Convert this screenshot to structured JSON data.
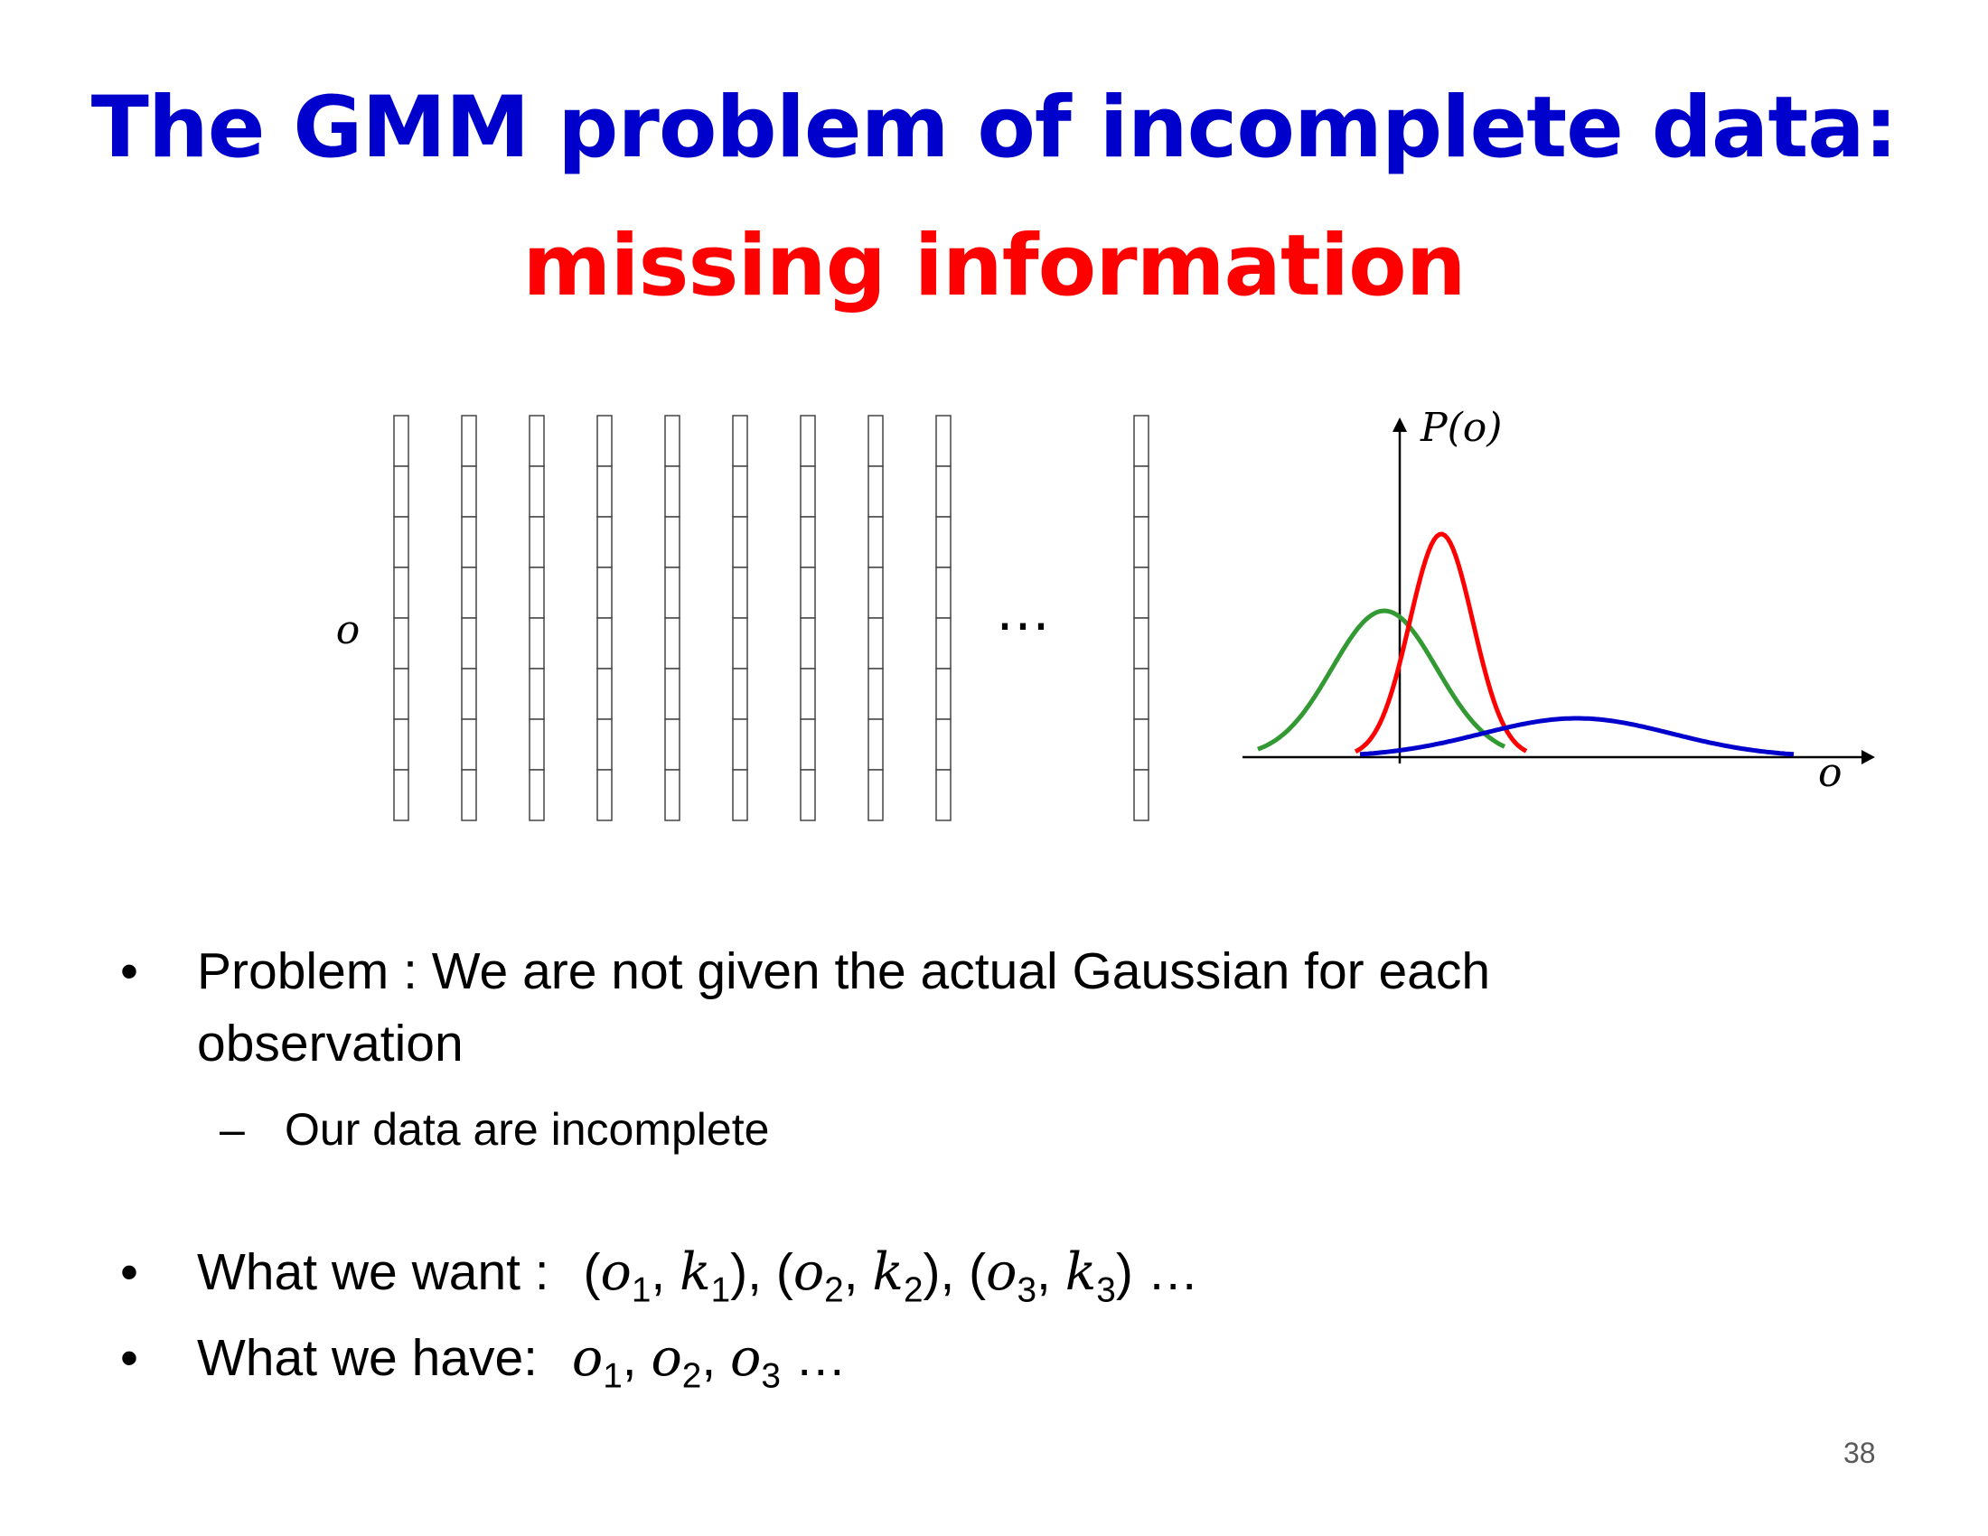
{
  "slide": {
    "title_line1": "The GMM problem of incomplete data:",
    "title_line2": "missing information",
    "page_number": "38"
  },
  "figure": {
    "column_label": "o",
    "column_count": 10,
    "cells_per_column": 8,
    "ellipsis": "⋯",
    "axis_y_label": "P(o)",
    "axis_x_label": "o",
    "curve_colors": {
      "green": "#339933",
      "red": "#ff0000",
      "blue": "#0000cc"
    }
  },
  "bullets": {
    "problem_text": "Problem : We are not given the actual Gaussian for each",
    "problem_text_cont": "observation",
    "sub_marker": "–",
    "sub_text": "Our data are incomplete",
    "want_text": "What we want :",
    "have_text": "What we have:",
    "marker": "•",
    "want_math": [
      {
        "o": "o",
        "os": "1",
        "k": "k",
        "ks": "1"
      },
      {
        "o": "o",
        "os": "2",
        "k": "k",
        "ks": "2"
      },
      {
        "o": "o",
        "os": "3",
        "k": "k",
        "ks": "3"
      }
    ],
    "have_math": [
      {
        "o": "o",
        "os": "1"
      },
      {
        "o": "o",
        "os": "2"
      },
      {
        "o": "o",
        "os": "3"
      }
    ],
    "trailing_ellipsis": "…"
  }
}
